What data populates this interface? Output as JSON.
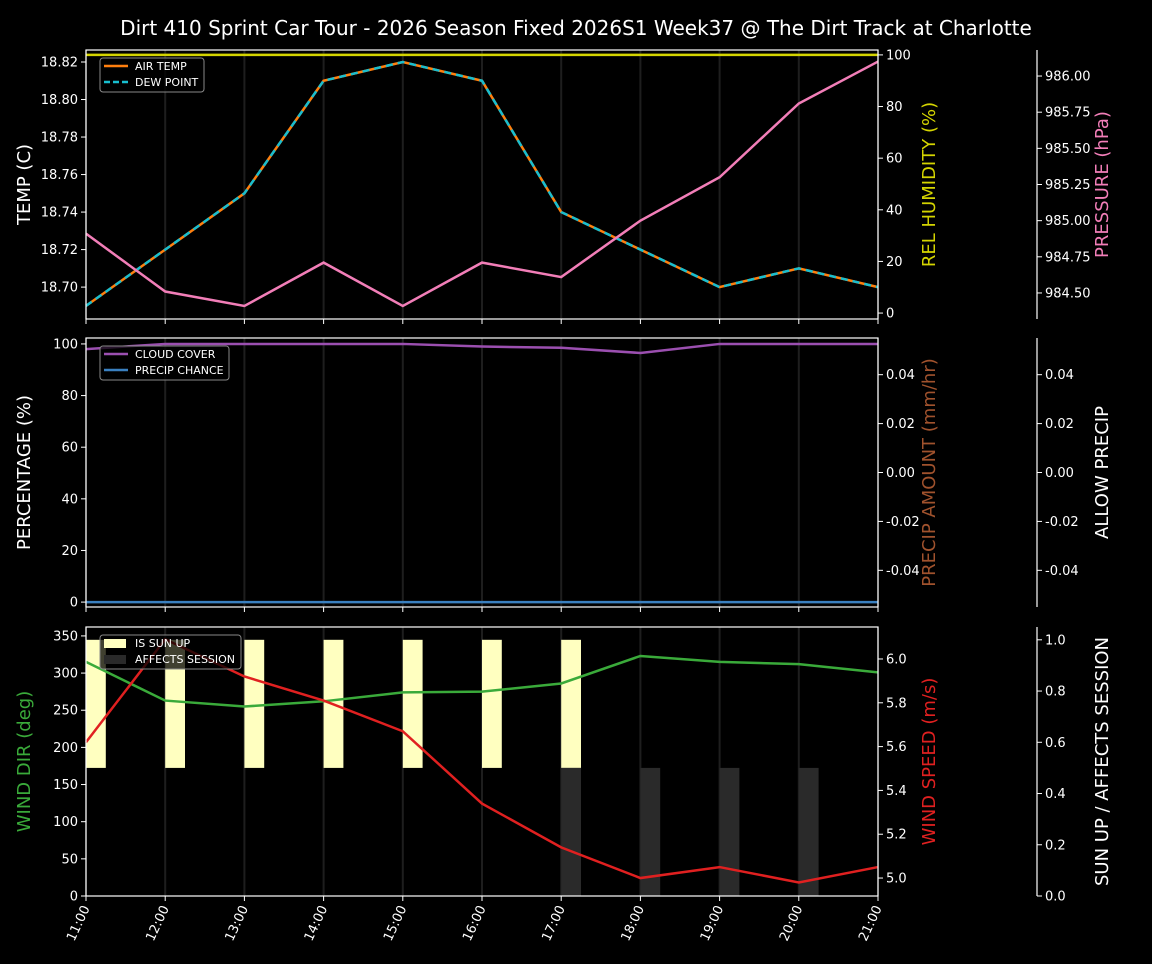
{
  "title": "Dirt 410 Sprint Car Tour - 2026 Season Fixed 2026S1 Week37 @ The Dirt Track at Charlotte",
  "chart_data": [
    {
      "type": "line",
      "x": [
        "11:00",
        "12:00",
        "13:00",
        "14:00",
        "15:00",
        "16:00",
        "17:00",
        "18:00",
        "19:00",
        "20:00",
        "21:00"
      ],
      "axes": {
        "left": {
          "label": "TEMP (C)",
          "color": "#ffffff",
          "ylim": [
            18.683,
            18.8264
          ],
          "ticks": [
            18.7,
            18.72,
            18.74,
            18.76,
            18.78,
            18.8,
            18.82
          ],
          "decimals": 2
        },
        "right1": {
          "label": "REL HUMIDITY (%)",
          "color": "#d4d400",
          "ylim": [
            -2.3,
            101.9
          ],
          "ticks": [
            0,
            20,
            40,
            60,
            80,
            100
          ],
          "decimals": 0
        },
        "right2": {
          "label": "PRESSURE (hPa)",
          "color": "#f27eb8",
          "ylim": [
            984.32,
            986.18
          ],
          "ticks": [
            984.5,
            984.75,
            985.0,
            985.25,
            985.5,
            985.75,
            986.0
          ],
          "decimals": 2
        }
      },
      "series": [
        {
          "name": "AIR TEMP",
          "axis": "left",
          "color": "#ff7f0e",
          "dash": false,
          "values": [
            18.69,
            18.72,
            18.75,
            18.81,
            18.82,
            18.81,
            18.74,
            18.72,
            18.7,
            18.71,
            18.7
          ]
        },
        {
          "name": "DEW POINT",
          "axis": "left",
          "color": "#17becf",
          "dash": true,
          "values": [
            18.69,
            18.72,
            18.75,
            18.81,
            18.82,
            18.81,
            18.74,
            18.72,
            18.7,
            18.71,
            18.7
          ]
        },
        {
          "axis": "right1",
          "color": "#d4d400",
          "dash": false,
          "values": [
            100,
            100,
            100,
            100,
            100,
            100,
            100,
            100,
            100,
            100,
            100
          ]
        },
        {
          "axis": "right2",
          "color": "#f27eb8",
          "dash": false,
          "values": [
            984.91,
            984.51,
            984.41,
            984.71,
            984.41,
            984.71,
            984.61,
            985.0,
            985.3,
            985.81,
            986.1
          ]
        }
      ],
      "legend": "top-left"
    },
    {
      "type": "line",
      "x": [
        "11:00",
        "12:00",
        "13:00",
        "14:00",
        "15:00",
        "16:00",
        "17:00",
        "18:00",
        "19:00",
        "20:00",
        "21:00"
      ],
      "axes": {
        "left": {
          "label": "PERCENTAGE (%)",
          "color": "#ffffff",
          "ylim": [
            -1.9,
            102.3
          ],
          "ticks": [
            0,
            20,
            40,
            60,
            80,
            100
          ],
          "decimals": 0
        },
        "right1": {
          "label": "PRECIP AMOUNT (mm/hr)",
          "color": "#a0522d",
          "ylim": [
            -0.055,
            0.055
          ],
          "ticks": [
            -0.04,
            -0.02,
            0.0,
            0.02,
            0.04
          ],
          "decimals": 2
        },
        "right2": {
          "label": "ALLOW PRECIP",
          "color": "#ffffff",
          "ylim": [
            -0.055,
            0.055
          ],
          "ticks": [
            -0.04,
            -0.02,
            0.0,
            0.02,
            0.04
          ],
          "decimals": 2
        }
      },
      "series": [
        {
          "name": "CLOUD COVER",
          "axis": "left",
          "color": "#9b4fb0",
          "dash": false,
          "values": [
            98,
            100,
            100,
            100,
            100,
            99,
            98.5,
            96.5,
            100,
            100,
            100
          ]
        },
        {
          "name": "PRECIP CHANCE",
          "axis": "left",
          "color": "#3a80c0",
          "dash": false,
          "values": [
            0,
            0,
            0,
            0,
            0,
            0,
            0,
            0,
            0,
            0,
            0
          ]
        }
      ],
      "legend": "top-left"
    },
    {
      "type": "line",
      "x": [
        "11:00",
        "12:00",
        "13:00",
        "14:00",
        "15:00",
        "16:00",
        "17:00",
        "18:00",
        "19:00",
        "20:00",
        "21:00"
      ],
      "axes": {
        "left": {
          "label": "WIND DIR (deg)",
          "color": "#3aaa3a",
          "ylim": [
            0,
            362
          ],
          "ticks": [
            0,
            50,
            100,
            150,
            200,
            250,
            300,
            350
          ],
          "decimals": 0
        },
        "right1": {
          "label": "WIND SPEED (m/s)",
          "color": "#e02020",
          "ylim": [
            4.918,
            6.146
          ],
          "ticks": [
            5.0,
            5.2,
            5.4,
            5.6,
            5.8,
            6.0
          ],
          "decimals": 1
        },
        "right2": {
          "label": "SUN UP / AFFECTS SESSION",
          "color": "#ffffff",
          "ylim": [
            0,
            1.05
          ],
          "ticks": [
            0.0,
            0.2,
            0.4,
            0.6,
            0.8,
            1.0
          ],
          "decimals": 1
        }
      },
      "bars": [
        {
          "name": "IS SUN UP",
          "axis": "right2",
          "color": "#ffffc0",
          "bottom": 0.5,
          "top": 1.0,
          "width_hours": 0.25,
          "values": [
            1,
            1,
            1,
            1,
            1,
            1,
            1,
            0,
            0,
            0,
            0
          ]
        },
        {
          "name": "AFFECTS SESSION",
          "axis": "right2",
          "color": "#2a2a2a",
          "bottom": 0.0,
          "top": 0.5,
          "width_hours": 0.25,
          "values": [
            0,
            0,
            0,
            0,
            0,
            0,
            1,
            1,
            1,
            1,
            0
          ]
        }
      ],
      "series": [
        {
          "axis": "left",
          "color": "#3aaa3a",
          "dash": false,
          "values": [
            315,
            263,
            255,
            262,
            274,
            275,
            286,
            323,
            315,
            312,
            301
          ]
        },
        {
          "axis": "right1",
          "color": "#e02020",
          "dash": false,
          "values": [
            5.62,
            6.09,
            5.92,
            5.81,
            5.67,
            5.34,
            5.14,
            5.0,
            5.05,
            4.98,
            5.05
          ]
        }
      ],
      "legend": "top-left"
    }
  ]
}
